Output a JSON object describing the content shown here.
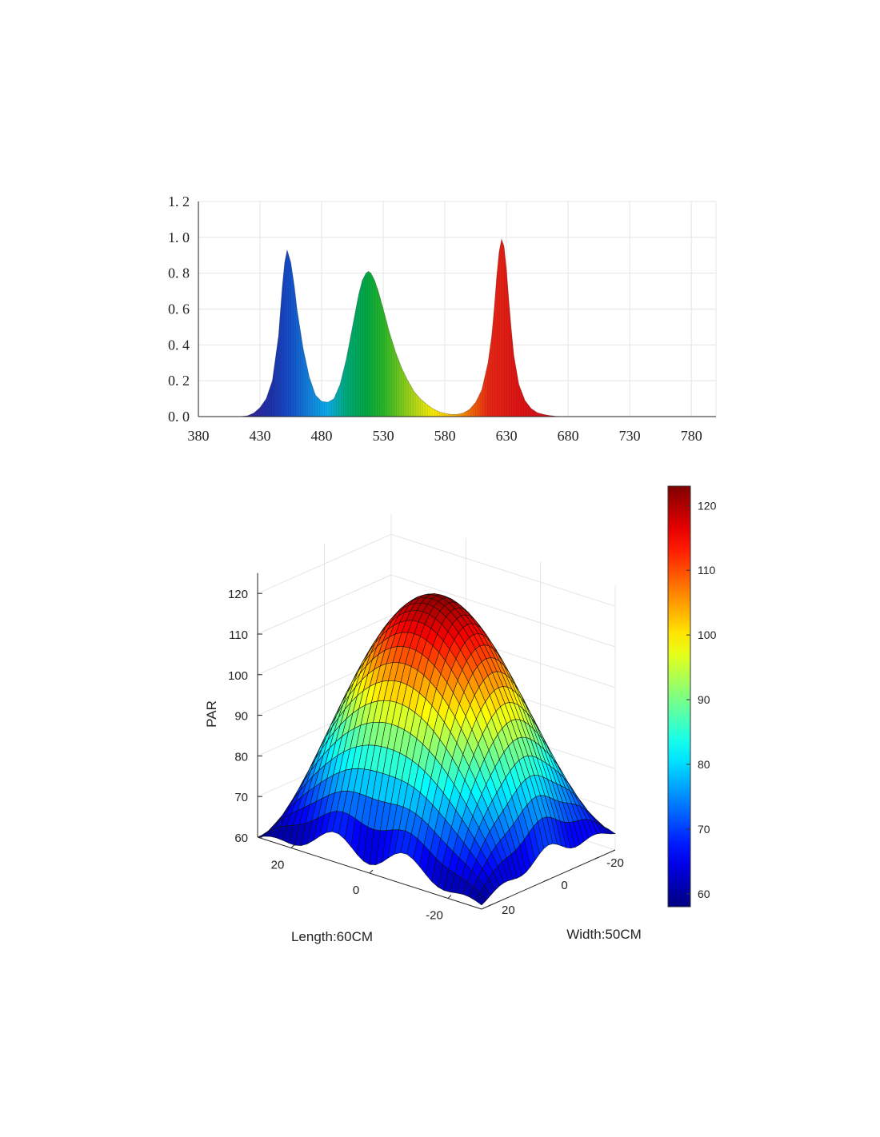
{
  "chart_data": [
    {
      "type": "area",
      "title": "",
      "xlabel": "",
      "ylabel": "",
      "xlim": [
        380,
        800
      ],
      "ylim": [
        0,
        1.2
      ],
      "x_ticks": [
        "380",
        "430",
        "480",
        "530",
        "580",
        "630",
        "680",
        "730",
        "780"
      ],
      "y_ticks": [
        "0.0",
        "0.2",
        "0.4",
        "0.6",
        "0.8",
        "1.0",
        "1.2"
      ],
      "grid": true,
      "series": [
        {
          "x": [
            413,
            420,
            425,
            430,
            435,
            440,
            445,
            448,
            450,
            452,
            455,
            458,
            460,
            465,
            470,
            475,
            480,
            485,
            490,
            495,
            500,
            505,
            510,
            513,
            516,
            518,
            520,
            523,
            526,
            530,
            535,
            540,
            545,
            550,
            555,
            560,
            565,
            570,
            575,
            580,
            585,
            590,
            595,
            600,
            605,
            610,
            615,
            618,
            620,
            622,
            624,
            626,
            628,
            630,
            632,
            634,
            636,
            640,
            645,
            650,
            655,
            660,
            665,
            670,
            675
          ],
          "values": [
            0.0,
            0.005,
            0.02,
            0.05,
            0.1,
            0.2,
            0.45,
            0.72,
            0.86,
            0.93,
            0.86,
            0.72,
            0.6,
            0.38,
            0.22,
            0.12,
            0.085,
            0.08,
            0.1,
            0.18,
            0.32,
            0.5,
            0.68,
            0.76,
            0.8,
            0.81,
            0.8,
            0.76,
            0.7,
            0.6,
            0.47,
            0.36,
            0.27,
            0.2,
            0.14,
            0.1,
            0.07,
            0.045,
            0.028,
            0.018,
            0.012,
            0.012,
            0.02,
            0.04,
            0.08,
            0.15,
            0.3,
            0.45,
            0.6,
            0.78,
            0.92,
            0.99,
            0.95,
            0.82,
            0.64,
            0.48,
            0.34,
            0.18,
            0.09,
            0.045,
            0.022,
            0.012,
            0.006,
            0.002,
            0.0
          ]
        }
      ]
    },
    {
      "type": "surface",
      "title": "",
      "zlabel": "PAR",
      "xlabel": "Length:60CM",
      "ylabel": "Width:50CM",
      "x_ticks": [
        "20",
        "0",
        "-20"
      ],
      "y_ticks": [
        "-20",
        "0",
        "20"
      ],
      "z_ticks": [
        "60",
        "70",
        "80",
        "90",
        "100",
        "110",
        "120"
      ],
      "zlim": [
        60,
        122
      ],
      "colorbar_ticks": [
        "60",
        "70",
        "80",
        "90",
        "100",
        "110",
        "120"
      ],
      "colormap": "jet",
      "center_value": 121,
      "corner_values": [
        60,
        61,
        64,
        60
      ],
      "edge_midpoint_values": {
        "width_+25_edge": 75,
        "length_-30_edge": 76
      }
    }
  ],
  "colors": {
    "grid": "#e4e4e4",
    "axis": "#222222",
    "mesh": "#111111"
  }
}
